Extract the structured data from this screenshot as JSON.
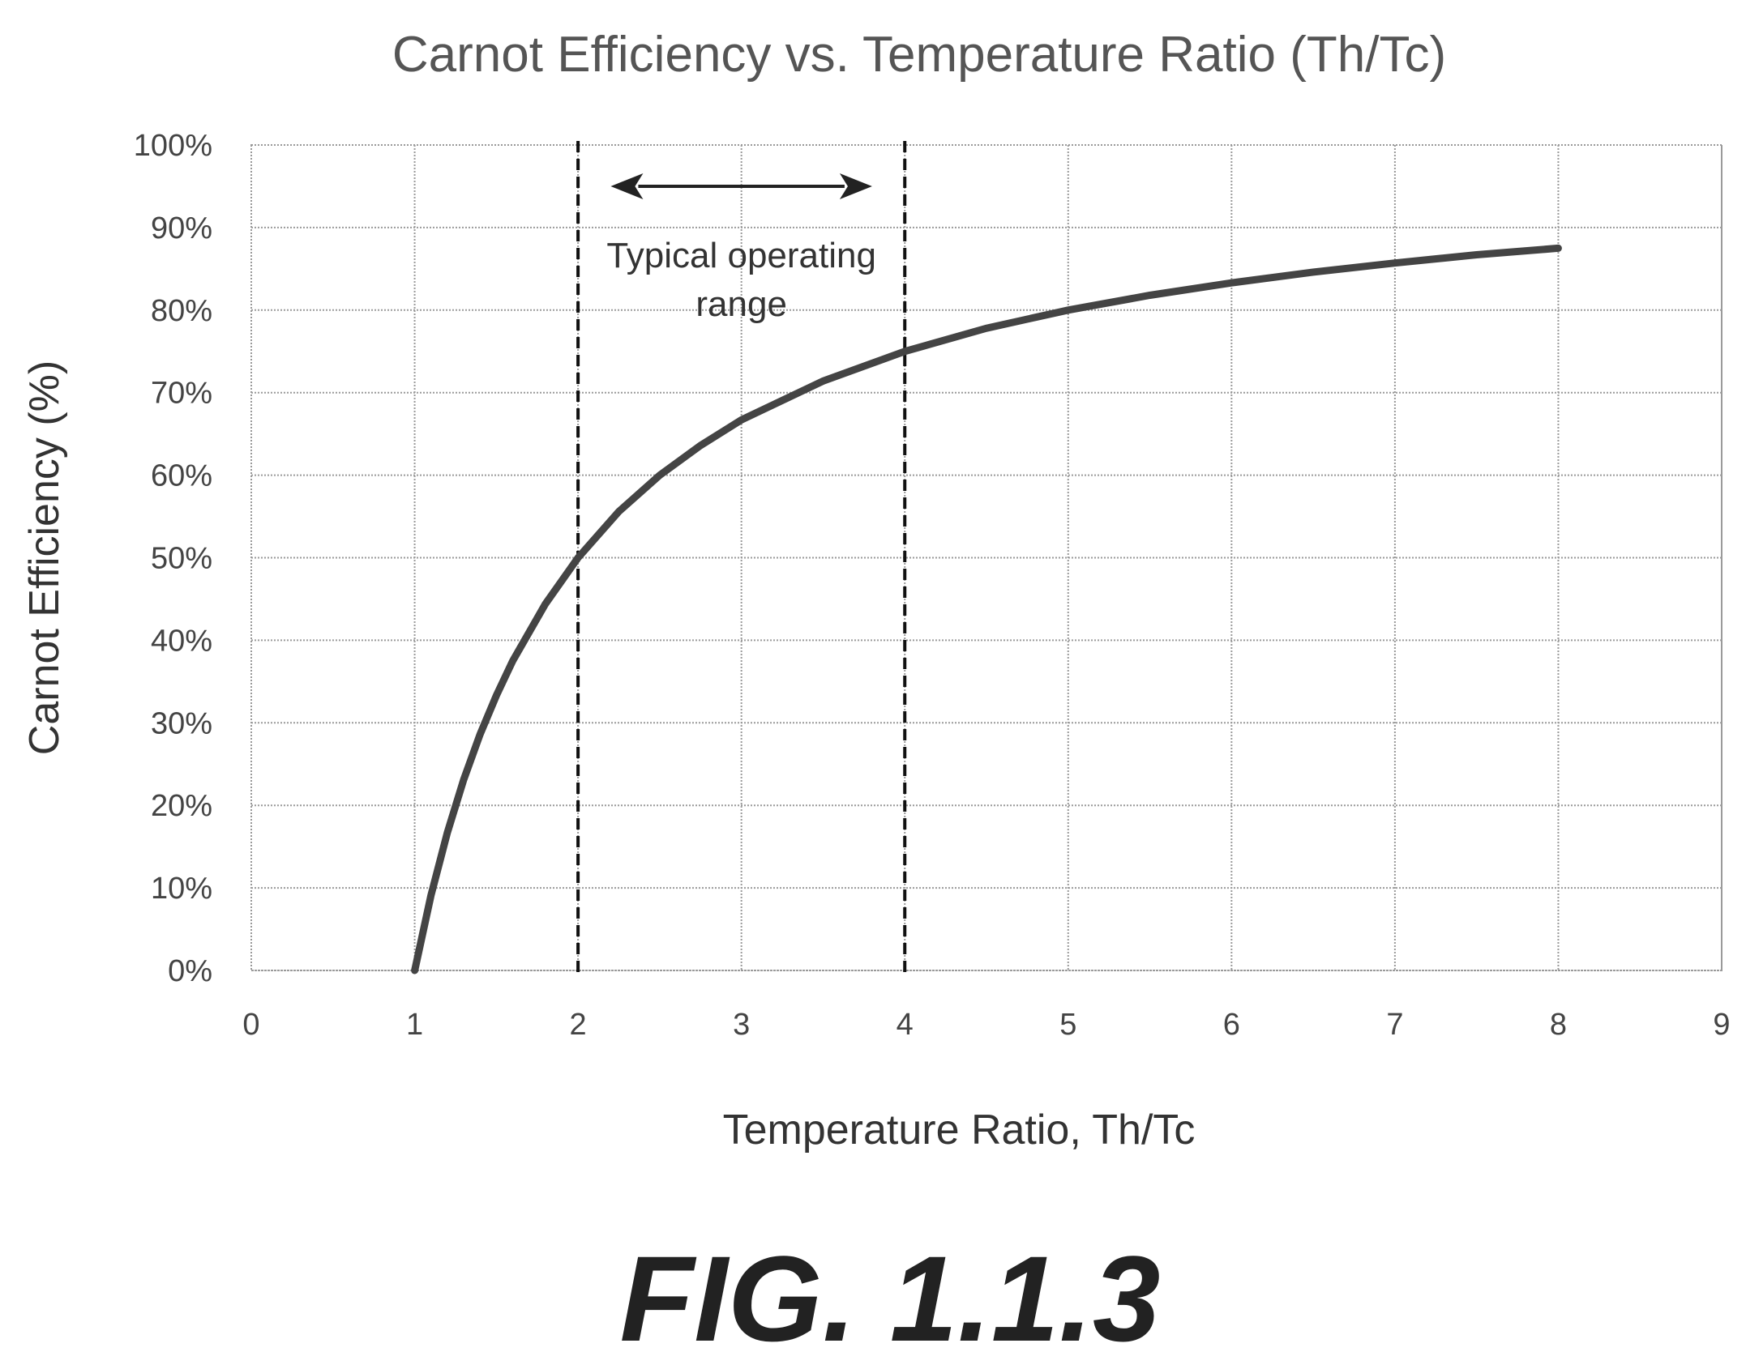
{
  "chart_data": {
    "type": "line",
    "title": "Carnot Efficiency vs. Temperature Ratio (Th/Tc)",
    "xlabel": "Temperature Ratio, Th/Tc",
    "ylabel": "Carnot Efficiency (%)",
    "xlim": [
      0,
      9
    ],
    "ylim": [
      0,
      100
    ],
    "x_ticks": [
      "0",
      "1",
      "2",
      "3",
      "4",
      "5",
      "6",
      "7",
      "8",
      "9"
    ],
    "y_ticks": [
      "0%",
      "10%",
      "20%",
      "30%",
      "40%",
      "50%",
      "60%",
      "70%",
      "80%",
      "90%",
      "100%"
    ],
    "grid": true,
    "series": [
      {
        "x": [
          1,
          1.1,
          1.2,
          1.3,
          1.4,
          1.5,
          1.6,
          1.8,
          2,
          2.25,
          2.5,
          2.75,
          3,
          3.5,
          4,
          4.5,
          5,
          5.5,
          6,
          6.5,
          7,
          7.5,
          8
        ],
        "y": [
          0,
          9.1,
          16.7,
          23.1,
          28.6,
          33.3,
          37.5,
          44.4,
          50,
          55.6,
          60,
          63.6,
          66.7,
          71.4,
          75,
          77.8,
          80,
          81.8,
          83.3,
          84.6,
          85.7,
          86.7,
          87.5
        ]
      }
    ],
    "reference_lines_x": [
      2,
      4
    ],
    "annotation": {
      "text_line1": "Typical operating",
      "text_line2": "range",
      "arrow_x": [
        2.2,
        3.8
      ],
      "arrow_y": 95
    }
  },
  "figure_label": "FIG. 1.1.3"
}
